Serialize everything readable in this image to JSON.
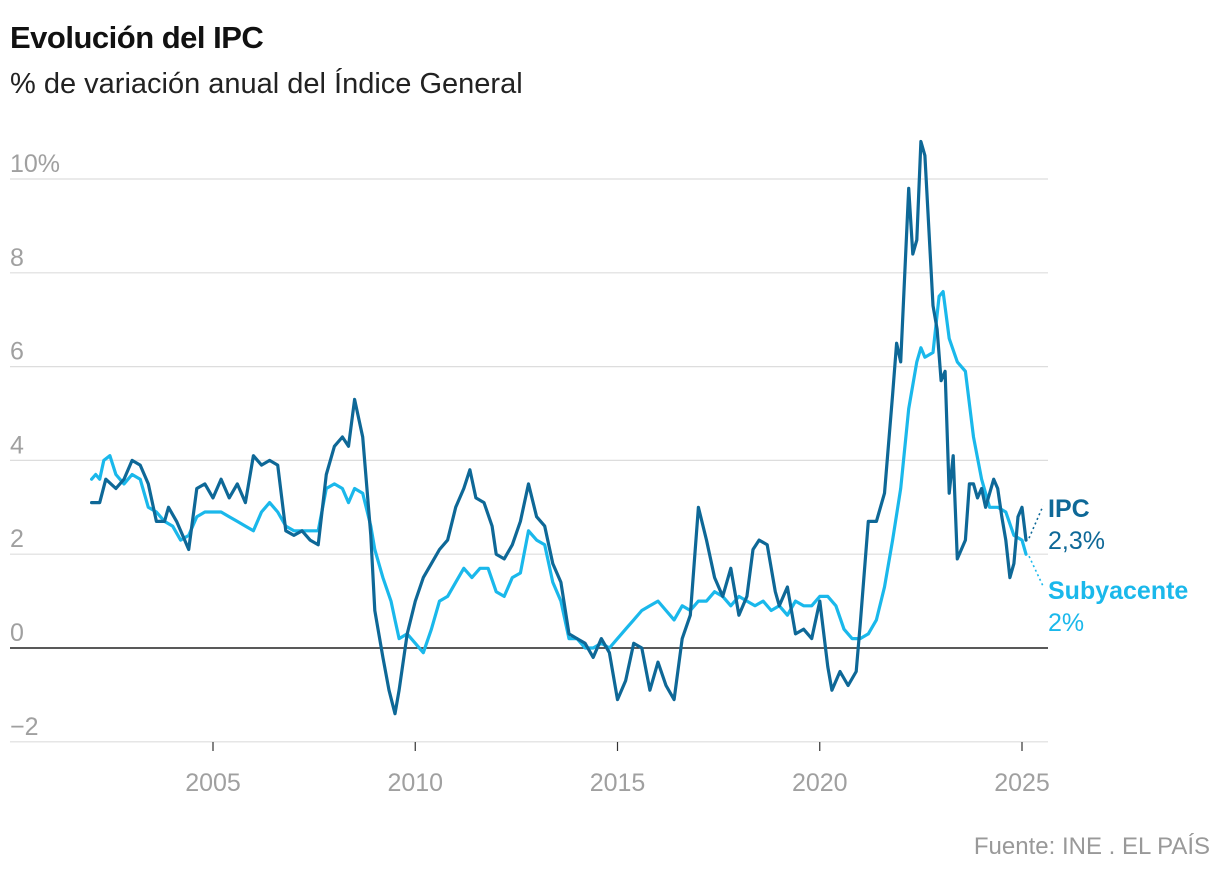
{
  "title": "Evolución del IPC",
  "subtitle": "% de variación anual del Índice General",
  "source": "Fuente: INE . EL PAÍS",
  "colors": {
    "ipc": "#0e6897",
    "subyacente": "#1ab8eb",
    "grid": "#dddddd",
    "zero": "#222222",
    "tick": "#a0a0a0"
  },
  "chart_data": {
    "type": "line",
    "title": "Evolución del IPC",
    "subtitle": "% de variación anual del Índice General",
    "xlabel": "",
    "ylabel": "",
    "xlim": [
      2002,
      2025.6
    ],
    "ylim": [
      -2,
      11.5
    ],
    "y_ticks": [
      -2,
      0,
      2,
      4,
      6,
      8,
      10
    ],
    "y_tick_labels": [
      "−2",
      "0",
      "2",
      "4",
      "6",
      "8",
      "10%"
    ],
    "x_ticks": [
      2005,
      2010,
      2015,
      2020,
      2025
    ],
    "x_tick_labels": [
      "2005",
      "2010",
      "2015",
      "2020",
      "2025"
    ],
    "grid": true,
    "series": [
      {
        "name": "IPC",
        "end_label": "2,3%",
        "color": "#0e6897",
        "points": [
          [
            2002.0,
            3.1
          ],
          [
            2002.2,
            3.1
          ],
          [
            2002.35,
            3.6
          ],
          [
            2002.6,
            3.4
          ],
          [
            2002.8,
            3.6
          ],
          [
            2003.0,
            4.0
          ],
          [
            2003.2,
            3.9
          ],
          [
            2003.4,
            3.5
          ],
          [
            2003.6,
            2.7
          ],
          [
            2003.8,
            2.7
          ],
          [
            2003.9,
            3.0
          ],
          [
            2004.1,
            2.7
          ],
          [
            2004.3,
            2.3
          ],
          [
            2004.4,
            2.1
          ],
          [
            2004.6,
            3.4
          ],
          [
            2004.8,
            3.5
          ],
          [
            2005.0,
            3.2
          ],
          [
            2005.2,
            3.6
          ],
          [
            2005.4,
            3.2
          ],
          [
            2005.6,
            3.5
          ],
          [
            2005.8,
            3.1
          ],
          [
            2006.0,
            4.1
          ],
          [
            2006.2,
            3.9
          ],
          [
            2006.4,
            4.0
          ],
          [
            2006.6,
            3.9
          ],
          [
            2006.8,
            2.5
          ],
          [
            2007.0,
            2.4
          ],
          [
            2007.2,
            2.5
          ],
          [
            2007.4,
            2.3
          ],
          [
            2007.6,
            2.2
          ],
          [
            2007.8,
            3.7
          ],
          [
            2008.0,
            4.3
          ],
          [
            2008.2,
            4.5
          ],
          [
            2008.35,
            4.3
          ],
          [
            2008.5,
            5.3
          ],
          [
            2008.7,
            4.5
          ],
          [
            2008.9,
            2.4
          ],
          [
            2009.0,
            0.8
          ],
          [
            2009.2,
            -0.2
          ],
          [
            2009.35,
            -0.9
          ],
          [
            2009.5,
            -1.4
          ],
          [
            2009.6,
            -0.9
          ],
          [
            2009.8,
            0.3
          ],
          [
            2010.0,
            1.0
          ],
          [
            2010.2,
            1.5
          ],
          [
            2010.4,
            1.8
          ],
          [
            2010.6,
            2.1
          ],
          [
            2010.8,
            2.3
          ],
          [
            2011.0,
            3.0
          ],
          [
            2011.2,
            3.4
          ],
          [
            2011.35,
            3.8
          ],
          [
            2011.5,
            3.2
          ],
          [
            2011.7,
            3.1
          ],
          [
            2011.9,
            2.6
          ],
          [
            2012.0,
            2.0
          ],
          [
            2012.2,
            1.9
          ],
          [
            2012.4,
            2.2
          ],
          [
            2012.6,
            2.7
          ],
          [
            2012.8,
            3.5
          ],
          [
            2013.0,
            2.8
          ],
          [
            2013.2,
            2.6
          ],
          [
            2013.4,
            1.8
          ],
          [
            2013.6,
            1.4
          ],
          [
            2013.8,
            0.3
          ],
          [
            2014.0,
            0.2
          ],
          [
            2014.2,
            0.1
          ],
          [
            2014.4,
            -0.2
          ],
          [
            2014.6,
            0.2
          ],
          [
            2014.8,
            -0.1
          ],
          [
            2015.0,
            -1.1
          ],
          [
            2015.2,
            -0.7
          ],
          [
            2015.4,
            0.1
          ],
          [
            2015.6,
            0.0
          ],
          [
            2015.8,
            -0.9
          ],
          [
            2016.0,
            -0.3
          ],
          [
            2016.2,
            -0.8
          ],
          [
            2016.4,
            -1.1
          ],
          [
            2016.6,
            0.2
          ],
          [
            2016.8,
            0.7
          ],
          [
            2017.0,
            3.0
          ],
          [
            2017.2,
            2.3
          ],
          [
            2017.4,
            1.5
          ],
          [
            2017.6,
            1.1
          ],
          [
            2017.8,
            1.7
          ],
          [
            2018.0,
            0.7
          ],
          [
            2018.2,
            1.1
          ],
          [
            2018.35,
            2.1
          ],
          [
            2018.5,
            2.3
          ],
          [
            2018.7,
            2.2
          ],
          [
            2018.9,
            1.2
          ],
          [
            2019.0,
            0.9
          ],
          [
            2019.2,
            1.3
          ],
          [
            2019.4,
            0.3
          ],
          [
            2019.6,
            0.4
          ],
          [
            2019.8,
            0.2
          ],
          [
            2020.0,
            1.0
          ],
          [
            2020.2,
            -0.4
          ],
          [
            2020.3,
            -0.9
          ],
          [
            2020.5,
            -0.5
          ],
          [
            2020.7,
            -0.8
          ],
          [
            2020.9,
            -0.5
          ],
          [
            2021.0,
            0.5
          ],
          [
            2021.2,
            2.7
          ],
          [
            2021.4,
            2.7
          ],
          [
            2021.6,
            3.3
          ],
          [
            2021.8,
            5.4
          ],
          [
            2021.9,
            6.5
          ],
          [
            2022.0,
            6.1
          ],
          [
            2022.2,
            9.8
          ],
          [
            2022.3,
            8.4
          ],
          [
            2022.4,
            8.7
          ],
          [
            2022.5,
            10.8
          ],
          [
            2022.6,
            10.5
          ],
          [
            2022.8,
            7.3
          ],
          [
            2022.9,
            6.8
          ],
          [
            2023.0,
            5.7
          ],
          [
            2023.1,
            5.9
          ],
          [
            2023.2,
            3.3
          ],
          [
            2023.3,
            4.1
          ],
          [
            2023.4,
            1.9
          ],
          [
            2023.6,
            2.3
          ],
          [
            2023.7,
            3.5
          ],
          [
            2023.8,
            3.5
          ],
          [
            2023.9,
            3.2
          ],
          [
            2024.0,
            3.4
          ],
          [
            2024.1,
            3.0
          ],
          [
            2024.3,
            3.6
          ],
          [
            2024.4,
            3.4
          ],
          [
            2024.5,
            2.8
          ],
          [
            2024.6,
            2.3
          ],
          [
            2024.7,
            1.5
          ],
          [
            2024.8,
            1.8
          ],
          [
            2024.9,
            2.8
          ],
          [
            2025.0,
            3.0
          ],
          [
            2025.1,
            2.3
          ]
        ]
      },
      {
        "name": "Subyacente",
        "end_label": "2%",
        "color": "#1ab8eb",
        "points": [
          [
            2002.0,
            3.6
          ],
          [
            2002.1,
            3.7
          ],
          [
            2002.2,
            3.6
          ],
          [
            2002.3,
            4.0
          ],
          [
            2002.45,
            4.1
          ],
          [
            2002.6,
            3.7
          ],
          [
            2002.8,
            3.5
          ],
          [
            2003.0,
            3.7
          ],
          [
            2003.2,
            3.6
          ],
          [
            2003.4,
            3.0
          ],
          [
            2003.6,
            2.9
          ],
          [
            2003.8,
            2.7
          ],
          [
            2004.0,
            2.6
          ],
          [
            2004.2,
            2.3
          ],
          [
            2004.4,
            2.4
          ],
          [
            2004.6,
            2.8
          ],
          [
            2004.8,
            2.9
          ],
          [
            2005.0,
            2.9
          ],
          [
            2005.2,
            2.9
          ],
          [
            2005.4,
            2.8
          ],
          [
            2005.6,
            2.7
          ],
          [
            2005.8,
            2.6
          ],
          [
            2006.0,
            2.5
          ],
          [
            2006.2,
            2.9
          ],
          [
            2006.4,
            3.1
          ],
          [
            2006.6,
            2.9
          ],
          [
            2006.8,
            2.6
          ],
          [
            2007.0,
            2.5
          ],
          [
            2007.2,
            2.5
          ],
          [
            2007.4,
            2.5
          ],
          [
            2007.6,
            2.5
          ],
          [
            2007.8,
            3.4
          ],
          [
            2008.0,
            3.5
          ],
          [
            2008.2,
            3.4
          ],
          [
            2008.35,
            3.1
          ],
          [
            2008.5,
            3.4
          ],
          [
            2008.7,
            3.3
          ],
          [
            2008.9,
            2.6
          ],
          [
            2009.0,
            2.1
          ],
          [
            2009.2,
            1.5
          ],
          [
            2009.4,
            1.0
          ],
          [
            2009.5,
            0.6
          ],
          [
            2009.6,
            0.2
          ],
          [
            2009.8,
            0.3
          ],
          [
            2010.0,
            0.1
          ],
          [
            2010.2,
            -0.1
          ],
          [
            2010.4,
            0.4
          ],
          [
            2010.6,
            1.0
          ],
          [
            2010.8,
            1.1
          ],
          [
            2011.0,
            1.4
          ],
          [
            2011.2,
            1.7
          ],
          [
            2011.4,
            1.5
          ],
          [
            2011.6,
            1.7
          ],
          [
            2011.8,
            1.7
          ],
          [
            2012.0,
            1.2
          ],
          [
            2012.2,
            1.1
          ],
          [
            2012.4,
            1.5
          ],
          [
            2012.6,
            1.6
          ],
          [
            2012.8,
            2.5
          ],
          [
            2013.0,
            2.3
          ],
          [
            2013.2,
            2.2
          ],
          [
            2013.4,
            1.4
          ],
          [
            2013.6,
            1.0
          ],
          [
            2013.8,
            0.2
          ],
          [
            2014.0,
            0.2
          ],
          [
            2014.2,
            0.0
          ],
          [
            2014.4,
            0.0
          ],
          [
            2014.6,
            0.1
          ],
          [
            2014.8,
            0.0
          ],
          [
            2015.0,
            0.2
          ],
          [
            2015.2,
            0.4
          ],
          [
            2015.4,
            0.6
          ],
          [
            2015.6,
            0.8
          ],
          [
            2015.8,
            0.9
          ],
          [
            2016.0,
            1.0
          ],
          [
            2016.2,
            0.8
          ],
          [
            2016.4,
            0.6
          ],
          [
            2016.6,
            0.9
          ],
          [
            2016.8,
            0.8
          ],
          [
            2017.0,
            1.0
          ],
          [
            2017.2,
            1.0
          ],
          [
            2017.4,
            1.2
          ],
          [
            2017.6,
            1.1
          ],
          [
            2017.8,
            0.9
          ],
          [
            2018.0,
            1.1
          ],
          [
            2018.2,
            1.0
          ],
          [
            2018.4,
            0.9
          ],
          [
            2018.6,
            1.0
          ],
          [
            2018.8,
            0.8
          ],
          [
            2019.0,
            0.9
          ],
          [
            2019.2,
            0.7
          ],
          [
            2019.4,
            1.0
          ],
          [
            2019.6,
            0.9
          ],
          [
            2019.8,
            0.9
          ],
          [
            2020.0,
            1.1
          ],
          [
            2020.2,
            1.1
          ],
          [
            2020.4,
            0.9
          ],
          [
            2020.6,
            0.4
          ],
          [
            2020.8,
            0.2
          ],
          [
            2021.0,
            0.2
          ],
          [
            2021.2,
            0.3
          ],
          [
            2021.4,
            0.6
          ],
          [
            2021.6,
            1.3
          ],
          [
            2021.8,
            2.3
          ],
          [
            2022.0,
            3.4
          ],
          [
            2022.2,
            5.1
          ],
          [
            2022.4,
            6.1
          ],
          [
            2022.5,
            6.4
          ],
          [
            2022.6,
            6.2
          ],
          [
            2022.8,
            6.3
          ],
          [
            2022.95,
            7.5
          ],
          [
            2023.05,
            7.6
          ],
          [
            2023.2,
            6.6
          ],
          [
            2023.4,
            6.1
          ],
          [
            2023.6,
            5.9
          ],
          [
            2023.8,
            4.5
          ],
          [
            2024.0,
            3.6
          ],
          [
            2024.2,
            3.0
          ],
          [
            2024.4,
            3.0
          ],
          [
            2024.6,
            2.9
          ],
          [
            2024.8,
            2.4
          ],
          [
            2025.0,
            2.3
          ],
          [
            2025.1,
            2.0
          ]
        ]
      }
    ]
  }
}
